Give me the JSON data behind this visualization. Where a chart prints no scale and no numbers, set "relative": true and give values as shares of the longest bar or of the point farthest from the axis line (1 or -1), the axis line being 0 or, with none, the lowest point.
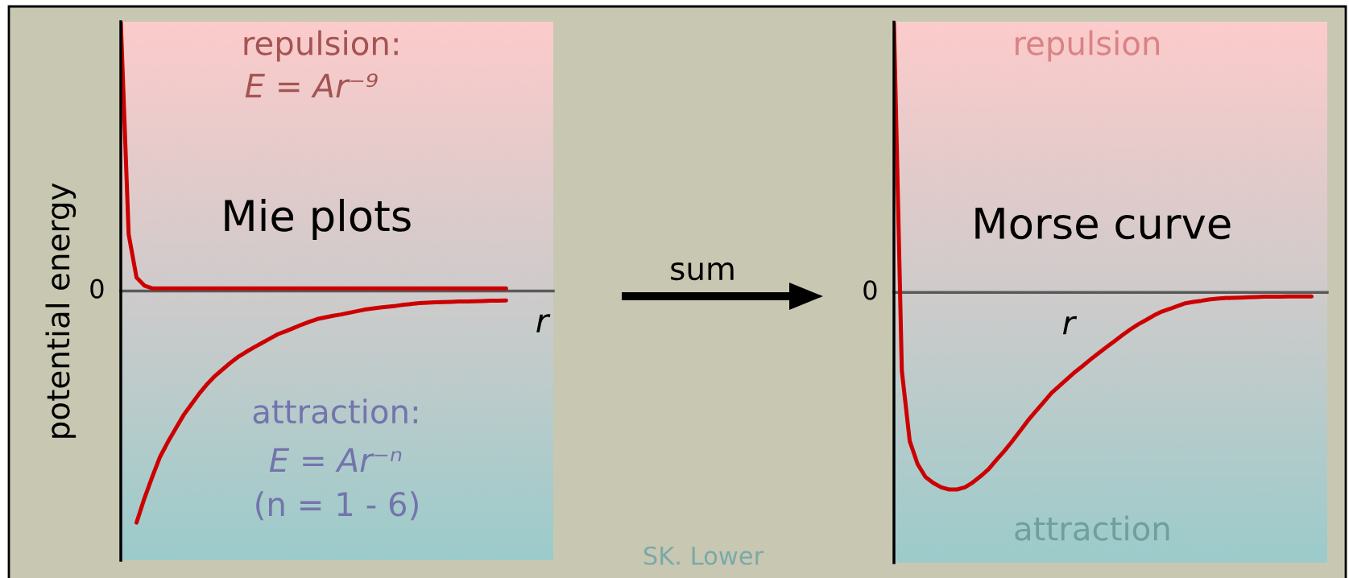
{
  "chart_data": [
    {
      "type": "line",
      "title": "Mie plots",
      "xlabel": "r",
      "ylabel": "potential energy",
      "relative": true,
      "categories": [
        null,
        null,
        null,
        null,
        null,
        null,
        null,
        null,
        null,
        null,
        null,
        null,
        null,
        null,
        null,
        null,
        null,
        null,
        null,
        null,
        null,
        null,
        null,
        null,
        null,
        null,
        null,
        null,
        null,
        null,
        null,
        null,
        null,
        null,
        null,
        null,
        null,
        null,
        null,
        null,
        null,
        null,
        null,
        null,
        null,
        null,
        null,
        null,
        null,
        null,
        null,
        null,
        null,
        null,
        null,
        null
      ],
      "series": [
        {
          "color": "#cc0000",
          "values": [
            1,
            0.21,
            0.05,
            0.02,
            0.01,
            0.01,
            0.01,
            0.01,
            0.01,
            0.01,
            0.01,
            0.01,
            0.01,
            0.01,
            0.01,
            0.01,
            0.01,
            0.01,
            0.01,
            0.01,
            0.01,
            0.01,
            0.01,
            0.01,
            0.01,
            0.01,
            0.01,
            0.01,
            0.01,
            0.01,
            0.01,
            0.01,
            0.01,
            0.01,
            0.01,
            0.01,
            0.01,
            0.01,
            0.01,
            0.01,
            0.01,
            0.01,
            0.01,
            0.01,
            0.01,
            0.01,
            0.01,
            0.01,
            0.01,
            0.01,
            null,
            null,
            null,
            null,
            null,
            null
          ]
        },
        {
          "color": "#cc0000",
          "values": [
            null,
            null,
            -0.86,
            -0.77,
            -0.69,
            -0.615,
            -0.56,
            -0.51,
            -0.46,
            -0.42,
            -0.38,
            -0.345,
            -0.315,
            -0.29,
            -0.265,
            -0.243,
            -0.225,
            -0.208,
            -0.192,
            -0.176,
            -0.16,
            -0.149,
            -0.137,
            -0.125,
            -0.114,
            -0.104,
            -0.098,
            -0.092,
            -0.087,
            -0.081,
            -0.075,
            -0.069,
            -0.065,
            -0.061,
            -0.058,
            -0.055,
            -0.051,
            -0.048,
            -0.045,
            -0.043,
            -0.042,
            -0.041,
            -0.04,
            -0.039,
            -0.039,
            -0.038,
            -0.037,
            -0.036,
            -0.036,
            -0.035,
            null,
            null,
            null,
            null,
            null,
            null
          ]
        }
      ],
      "annotations": [
        "repulsion:",
        "E = Ar⁻⁹",
        "attraction:",
        "E = Ar⁻ⁿ",
        "(n = 1 - 6)",
        "SK. Lower",
        "0"
      ]
    },
    {
      "type": "line",
      "title": "Morse curve",
      "xlabel": "r",
      "relative": true,
      "categories": [
        null,
        null,
        null,
        null,
        null,
        null,
        null,
        null,
        null,
        null,
        null,
        null,
        null,
        null,
        null,
        null,
        null,
        null,
        null,
        null,
        null,
        null,
        null,
        null,
        null,
        null,
        null,
        null,
        null,
        null,
        null,
        null,
        null,
        null,
        null,
        null,
        null,
        null,
        null,
        null,
        null,
        null,
        null,
        null,
        null,
        null,
        null,
        null,
        null,
        null,
        null,
        null,
        null,
        null,
        null,
        null
      ],
      "series": [
        {
          "color": "#cc0000",
          "values": [
            1,
            -0.29,
            -0.55,
            -0.635,
            -0.683,
            -0.705,
            -0.721,
            -0.729,
            -0.729,
            -0.721,
            -0.703,
            -0.68,
            -0.654,
            -0.62,
            -0.587,
            -0.551,
            -0.513,
            -0.474,
            -0.44,
            -0.406,
            -0.372,
            -0.346,
            -0.32,
            -0.294,
            -0.271,
            -0.247,
            -0.224,
            -0.202,
            -0.18,
            -0.158,
            -0.137,
            -0.118,
            -0.102,
            -0.085,
            -0.071,
            -0.061,
            -0.05,
            -0.04,
            -0.035,
            -0.031,
            -0.026,
            -0.023,
            -0.021,
            -0.02,
            -0.019,
            -0.018,
            -0.017,
            -0.016,
            -0.016,
            -0.016,
            -0.015,
            -0.015,
            -0.015,
            -0.015,
            null,
            null
          ]
        }
      ],
      "annotations": [
        "repulsion",
        "attraction",
        "sum",
        "0"
      ]
    }
  ]
}
